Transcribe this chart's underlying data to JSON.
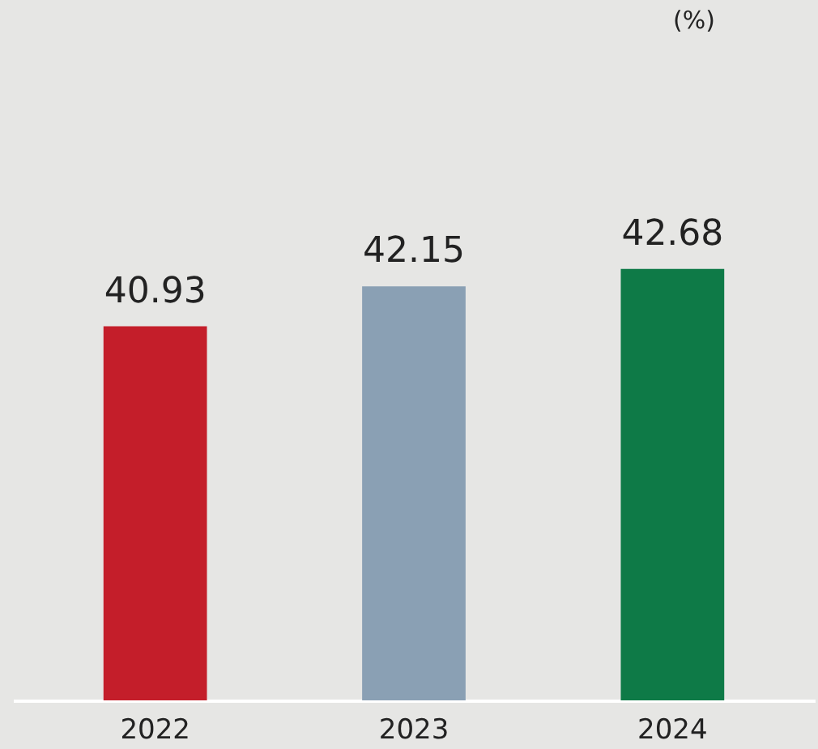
{
  "chart_data": {
    "type": "bar",
    "ylabel": "(%)",
    "categories": [
      "2022",
      "2023",
      "2024"
    ],
    "values": [
      40.93,
      42.15,
      42.68
    ],
    "colors": [
      "#c41e2a",
      "#8aa0b4",
      "#0e7a47"
    ],
    "ylim": [
      29.5,
      50.8
    ],
    "data_labels": true,
    "grid": false,
    "tick_labels": "x"
  }
}
